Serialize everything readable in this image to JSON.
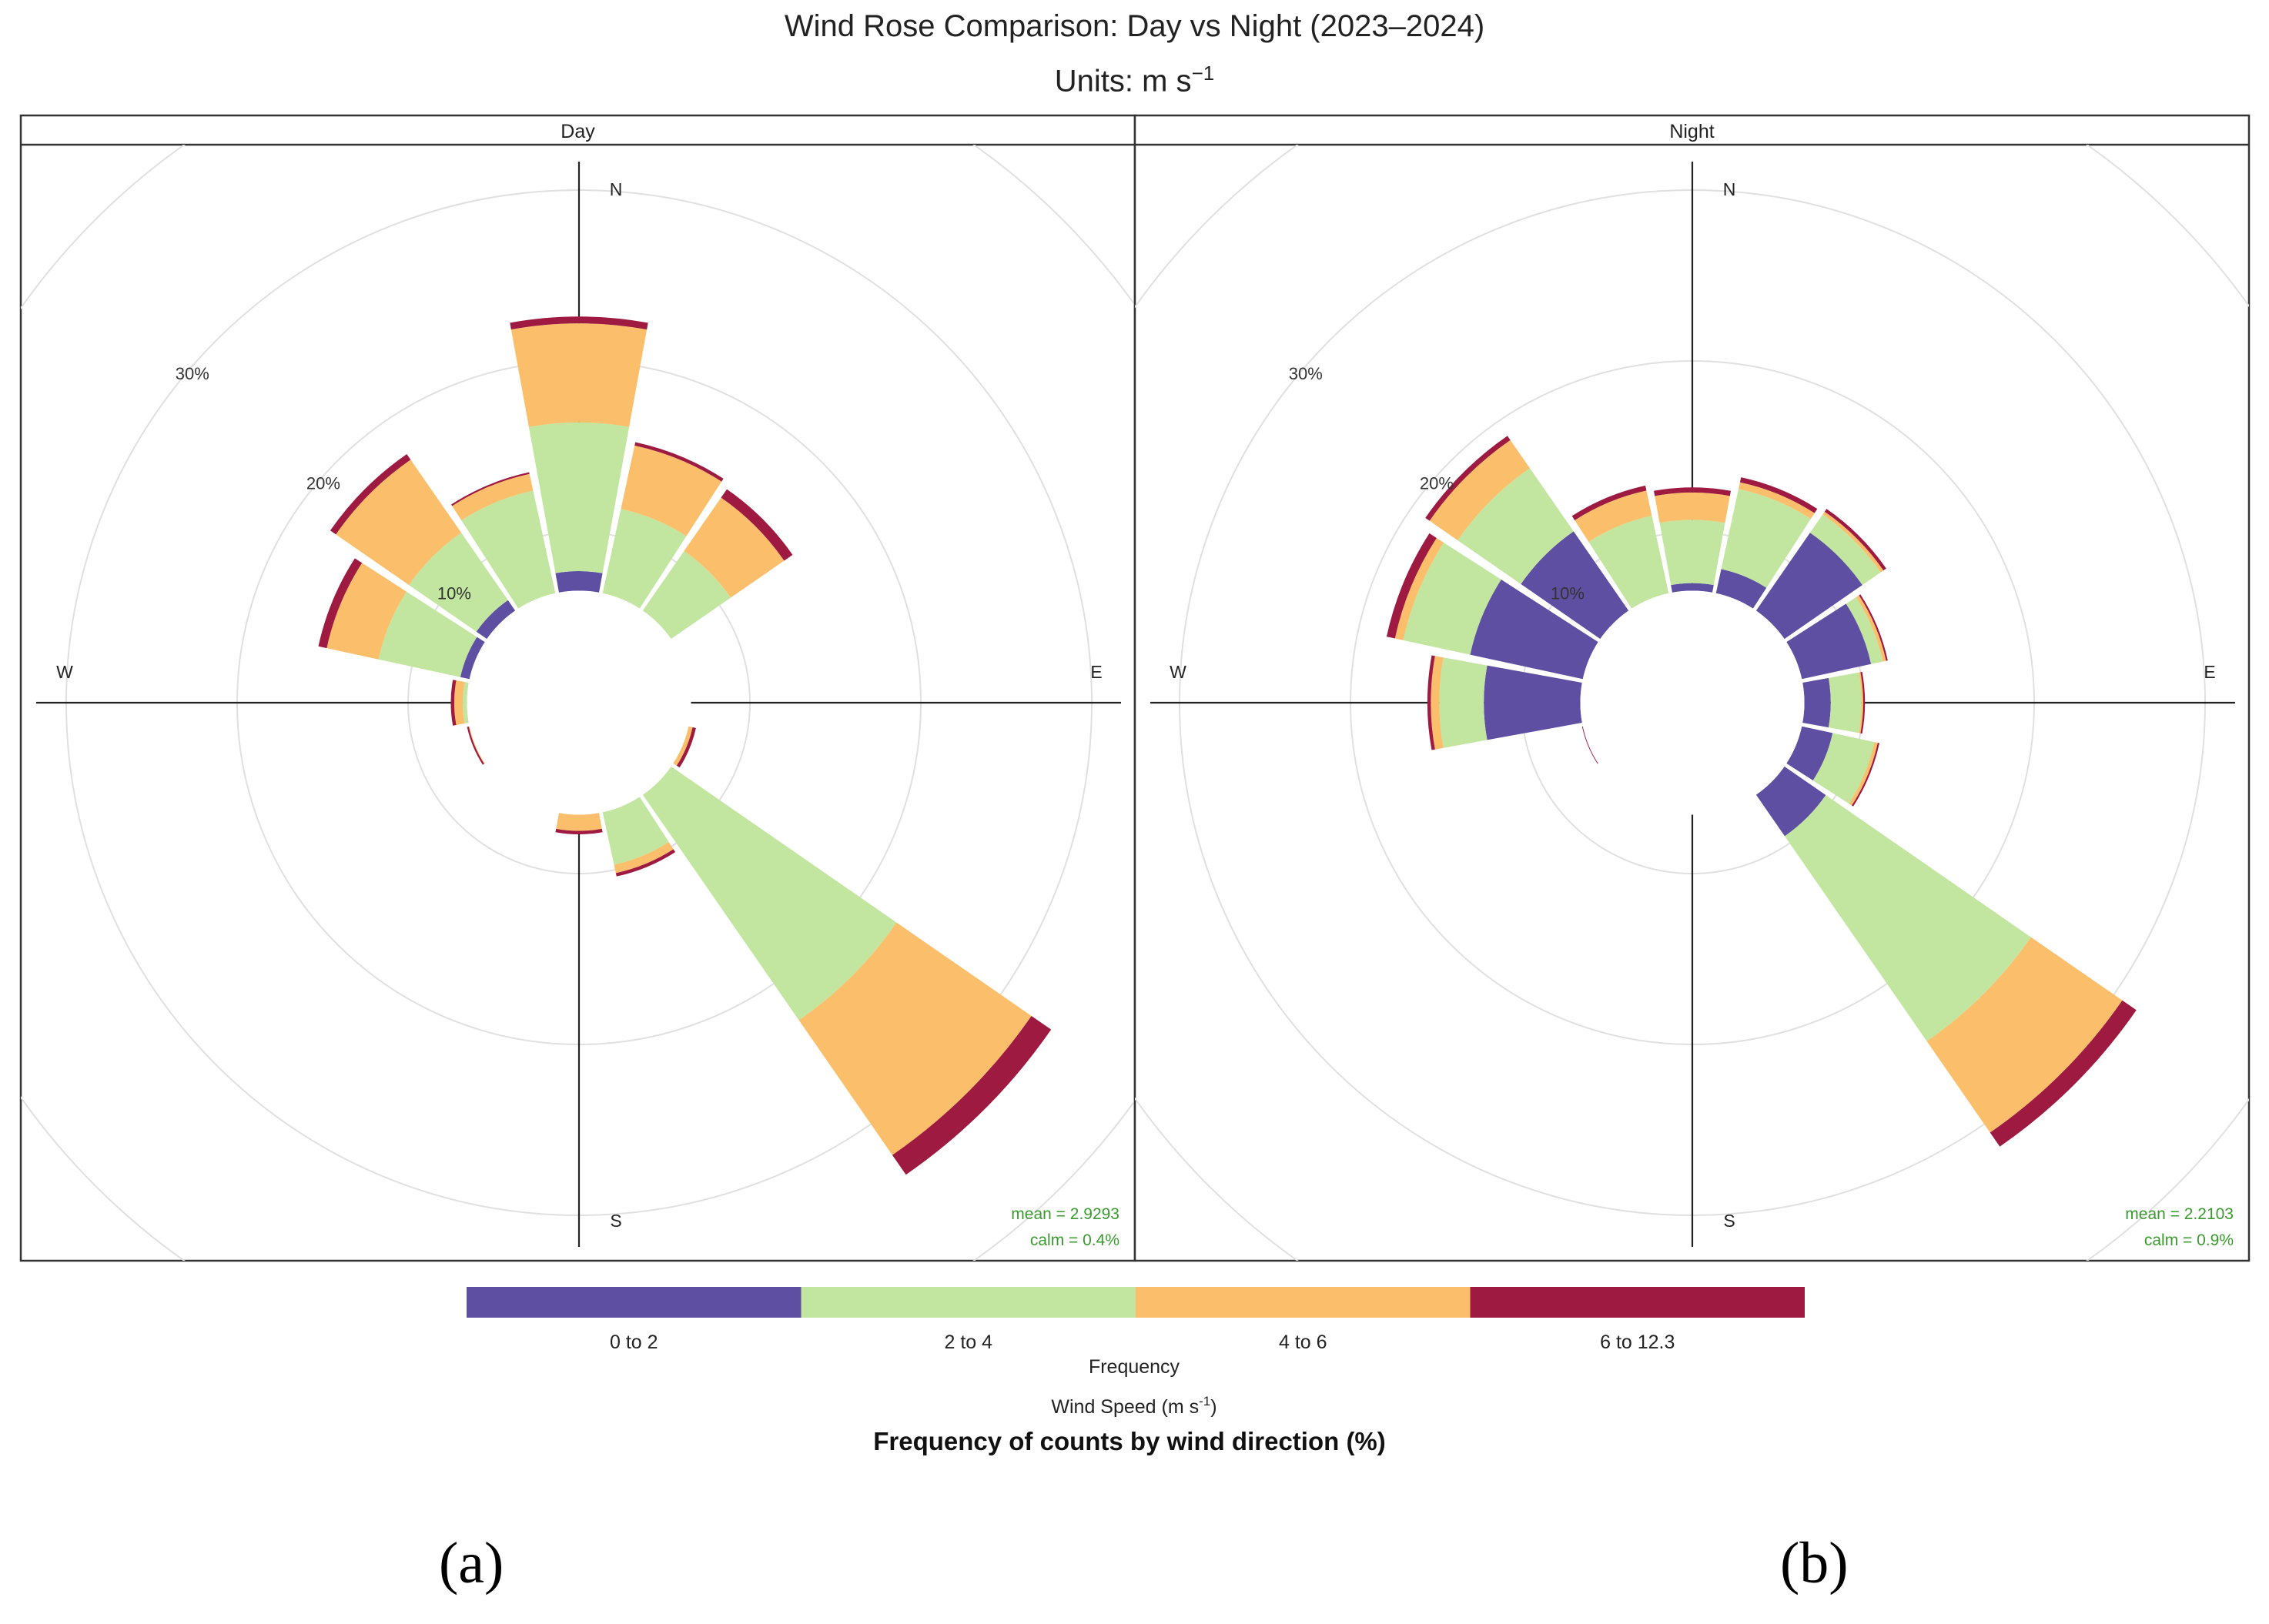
{
  "figure": {
    "title": "Wind Rose Comparison: Day vs Night (2023–2024)",
    "units": "Units: m s",
    "units_sup": "−1",
    "panel_labels": {
      "a": "(a)",
      "b": "(b)"
    }
  },
  "chart_data": {
    "type": "windrose",
    "directions": [
      "N",
      "NNE",
      "NE",
      "ENE",
      "E",
      "ESE",
      "SE",
      "SSE",
      "S",
      "SSW",
      "SW",
      "WSW",
      "W",
      "WNW",
      "NW",
      "NNW"
    ],
    "speed_bins": [
      "0 to 2",
      "2 to 4",
      "4 to 6",
      "6 to 12.3"
    ],
    "bin_colors": [
      "#5e4fa2",
      "#c2e5a0",
      "#fbbf6b",
      "#9e1a41"
    ],
    "radial_ticks": [
      10,
      20,
      30
    ],
    "radial_tick_labels": [
      "10%",
      "20%",
      "30%"
    ],
    "rmax": 35,
    "calm_radius": 2.3,
    "compass_labels": {
      "N": "N",
      "E": "E",
      "S": "S",
      "W": "W"
    },
    "panels": [
      {
        "name": "Day",
        "mean": "mean = 2.9293",
        "calm": "calm = 0.4%",
        "cumulative_percent": [
          [
            7.7,
            16.4,
            22.2,
            22.6
          ],
          [
            6.5,
            11.6,
            15.4,
            15.6
          ],
          [
            5.6,
            10.8,
            14.6,
            15.2
          ],
          [
            4.4,
            5.7,
            6.2,
            6.4
          ],
          [
            5.0,
            6.2,
            6.4,
            6.5
          ],
          [
            4.5,
            6.4,
            6.8,
            7.0
          ],
          [
            5.6,
            22.6,
            32.2,
            33.6
          ],
          [
            3.8,
            9.7,
            10.2,
            10.4
          ],
          [
            2.9,
            5.3,
            7.5,
            7.7
          ],
          [
            3.8,
            4.6,
            4.9,
            5.0
          ],
          [
            3.5,
            4.5,
            5.0,
            5.1
          ],
          [
            5.0,
            6.3,
            6.6,
            6.7
          ],
          [
            5.0,
            6.8,
            7.3,
            7.5
          ],
          [
            7.1,
            12.0,
            15.1,
            15.6
          ],
          [
            7.3,
            12.1,
            17.3,
            17.7
          ],
          [
            5.9,
            12.7,
            13.7,
            13.8
          ]
        ]
      },
      {
        "name": "Night",
        "mean": "mean = 2.2103",
        "calm": "calm = 0.9%",
        "cumulative_percent": [
          [
            7.0,
            10.7,
            12.3,
            12.6
          ],
          [
            8.0,
            12.8,
            13.2,
            13.5
          ],
          [
            12.1,
            13.4,
            13.6,
            13.8
          ],
          [
            10.7,
            11.4,
            11.6,
            11.7
          ],
          [
            8.1,
            9.9,
            10.0,
            10.1
          ],
          [
            8.4,
            10.9,
            11.1,
            11.2
          ],
          [
            9.5,
            24.1,
            30.6,
            31.6
          ],
          [
            2.7,
            5.1,
            5.4,
            5.7
          ],
          [
            2.6,
            5.4,
            5.7,
            5.8
          ],
          [
            3.0,
            3.8,
            4.0,
            4.2
          ],
          [
            3.9,
            4.4,
            4.6,
            4.8
          ],
          [
            5.0,
            6.1,
            6.4,
            6.6
          ],
          [
            12.2,
            14.8,
            15.3,
            15.5
          ],
          [
            13.3,
            17.3,
            17.8,
            18.3
          ],
          [
            12.2,
            16.7,
            18.7,
            19.0
          ],
          [
            6.0,
            11.2,
            12.7,
            13.0
          ]
        ]
      }
    ],
    "legend": {
      "bin_labels": [
        "0 to 2",
        "2 to 4",
        "4 to 6",
        "6 to 12.3"
      ],
      "title": "Frequency",
      "speed_label": "Wind Speed (m s",
      "speed_label_sup": "-1",
      "speed_label_close": ")",
      "caption": "Frequency of counts by wind direction (%)"
    },
    "annotation_color": "#3a9a2e"
  }
}
